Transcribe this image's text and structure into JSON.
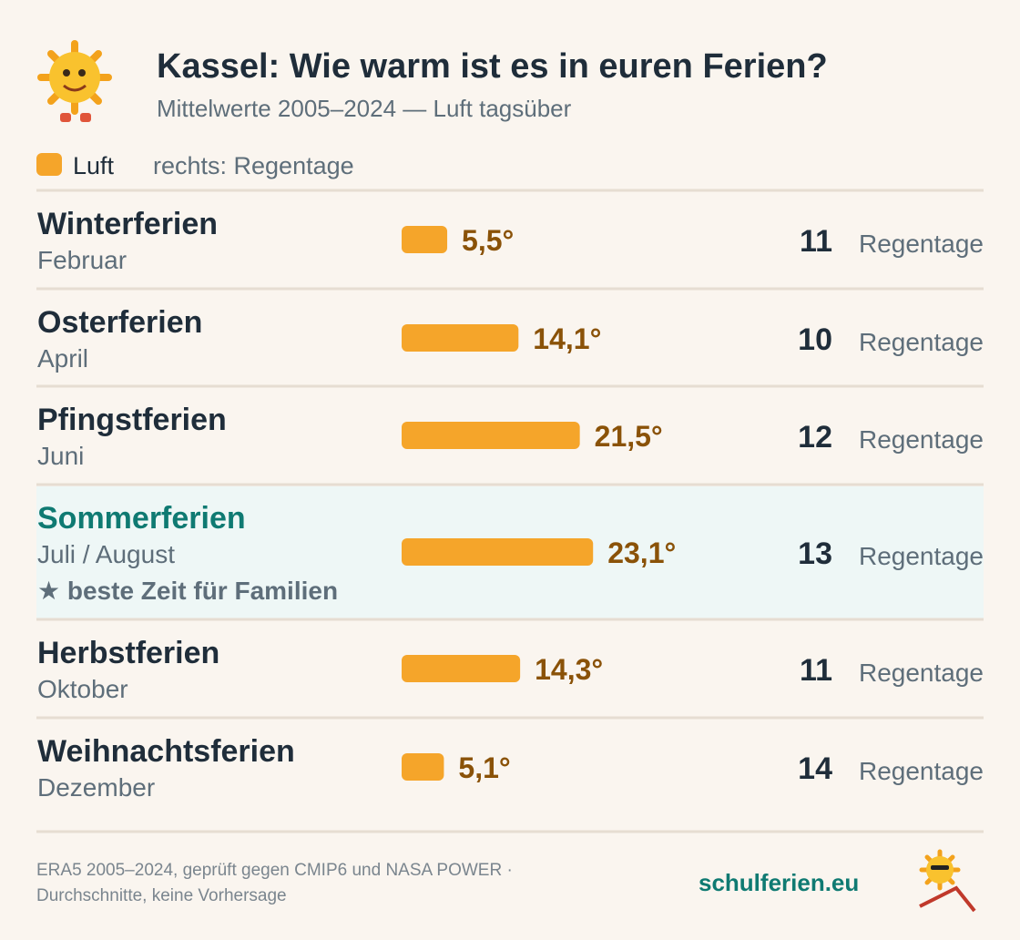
{
  "header": {
    "title": "Kassel: Wie warm ist es in euren Ferien?",
    "subtitle": "Mittelwerte 2005–2024 — Luft tagsüber"
  },
  "chart_data": {
    "type": "bar",
    "categories": [
      "Winterferien",
      "Osterferien",
      "Pfingstferien",
      "Sommerferien",
      "Herbstferien",
      "Weihnachtsferien"
    ],
    "months": [
      "Februar",
      "April",
      "Juni",
      "Juli / August",
      "Oktober",
      "Dezember"
    ],
    "notes": [
      null,
      null,
      null,
      "★ beste Zeit für Familien",
      null,
      null
    ],
    "series": [
      {
        "name": "Luft",
        "color": "#f5a52a",
        "values": [
          5.5,
          14.1,
          21.5,
          23.1,
          14.3,
          5.1
        ],
        "value_labels": [
          "5,5°",
          "14,1°",
          "21,5°",
          "23,1°",
          "14,3°",
          "5,1°"
        ]
      }
    ],
    "rain_note": "rechts: Regentage",
    "rain_unit": "Regentage",
    "rain_days": [
      11,
      10,
      12,
      13,
      11,
      14
    ]
  },
  "footer": {
    "source_1": "ERA5 2005–2024, geprüft gegen CMIP6 und NASA POWER ·",
    "source_2": "Durchschnitte, keine Vorhersage",
    "brand": "schulferien.eu"
  }
}
